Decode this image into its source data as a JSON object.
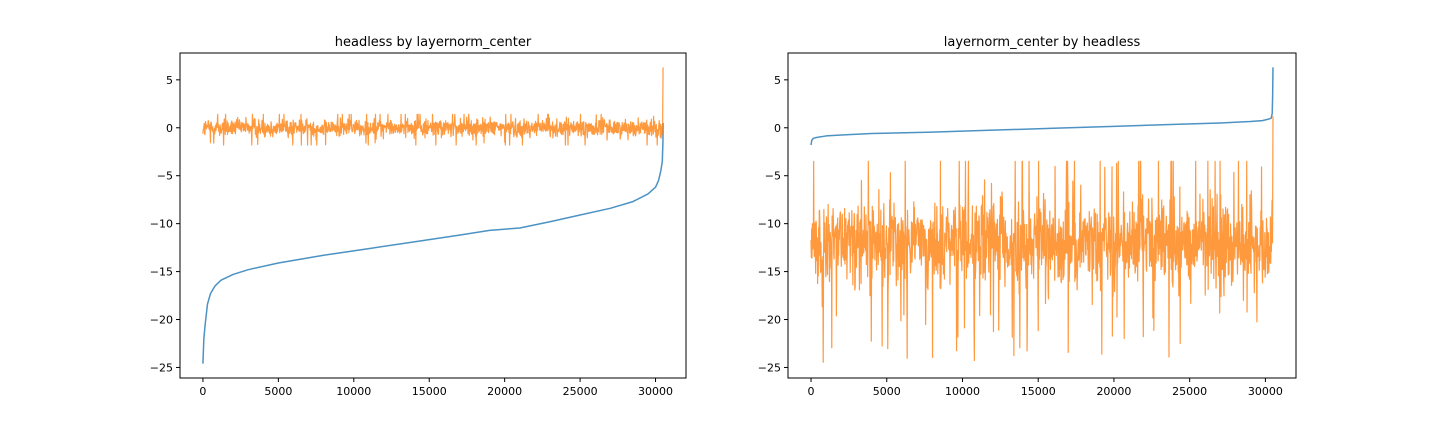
{
  "chart_data": [
    {
      "type": "line",
      "title": "headless by layernorm_center",
      "xlabel": "",
      "ylabel": "",
      "xlim": [
        -1520,
        32020
      ],
      "ylim": [
        -26.1,
        7.8
      ],
      "xticks": [
        0,
        5000,
        10000,
        15000,
        20000,
        25000,
        30000
      ],
      "xtick_labels": [
        "0",
        "5000",
        "10000",
        "15000",
        "20000",
        "25000",
        "30000"
      ],
      "yticks": [
        -25,
        -20,
        -15,
        -10,
        -5,
        0,
        5
      ],
      "ytick_labels": [
        "−25",
        "−20",
        "−15",
        "−10",
        "−5",
        "0",
        "5"
      ],
      "grid": false,
      "series": [
        {
          "kind": "sorted",
          "color": "#1f77b4",
          "x": [
            0,
            60,
            150,
            300,
            500,
            800,
            1200,
            2000,
            3000,
            5000,
            8000,
            11000,
            14000,
            17000,
            19000,
            21000,
            23000,
            25000,
            27000,
            28500,
            29500,
            30000,
            30200,
            30350,
            30450,
            30490,
            30500
          ],
          "y": [
            -24.6,
            -22.0,
            -20.5,
            -18.4,
            -17.3,
            -16.5,
            -15.9,
            -15.3,
            -14.8,
            -14.1,
            -13.3,
            -12.6,
            -11.9,
            -11.2,
            -10.7,
            -10.45,
            -9.8,
            -9.1,
            -8.4,
            -7.7,
            -6.9,
            -6.2,
            -5.5,
            -4.5,
            -3.5,
            -1.5,
            0.5
          ]
        },
        {
          "kind": "noise",
          "color": "#ff7f0e",
          "n": 30500,
          "center": 0.0,
          "amplitude": 1.2,
          "ymin": -1.8,
          "ymax": 1.4,
          "end_spike": 6.3
        }
      ]
    },
    {
      "type": "line",
      "title": "layernorm_center by headless",
      "xlabel": "",
      "ylabel": "",
      "xlim": [
        -1520,
        32020
      ],
      "ylim": [
        -26.1,
        7.8
      ],
      "xticks": [
        0,
        5000,
        10000,
        15000,
        20000,
        25000,
        30000
      ],
      "xtick_labels": [
        "0",
        "5000",
        "10000",
        "15000",
        "20000",
        "25000",
        "30000"
      ],
      "yticks": [
        -25,
        -20,
        -15,
        -10,
        -5,
        0,
        5
      ],
      "ytick_labels": [
        "−25",
        "−20",
        "−15",
        "−10",
        "−5",
        "0",
        "5"
      ],
      "grid": false,
      "series": [
        {
          "kind": "sorted",
          "color": "#1f77b4",
          "x": [
            0,
            50,
            150,
            400,
            1000,
            2000,
            4000,
            8000,
            12000,
            16000,
            20000,
            24000,
            27000,
            29000,
            29800,
            30200,
            30380,
            30450,
            30480,
            30500
          ],
          "y": [
            -1.8,
            -1.3,
            -1.1,
            -1.0,
            -0.85,
            -0.75,
            -0.6,
            -0.45,
            -0.25,
            -0.05,
            0.15,
            0.35,
            0.5,
            0.65,
            0.75,
            0.9,
            1.0,
            1.5,
            3.5,
            6.3
          ]
        },
        {
          "kind": "noise",
          "color": "#ff7f0e",
          "n": 30500,
          "center": -12.0,
          "amplitude": 6.0,
          "ymin": -24.5,
          "ymax": -3.5,
          "end_spike": 1.2
        }
      ]
    }
  ]
}
